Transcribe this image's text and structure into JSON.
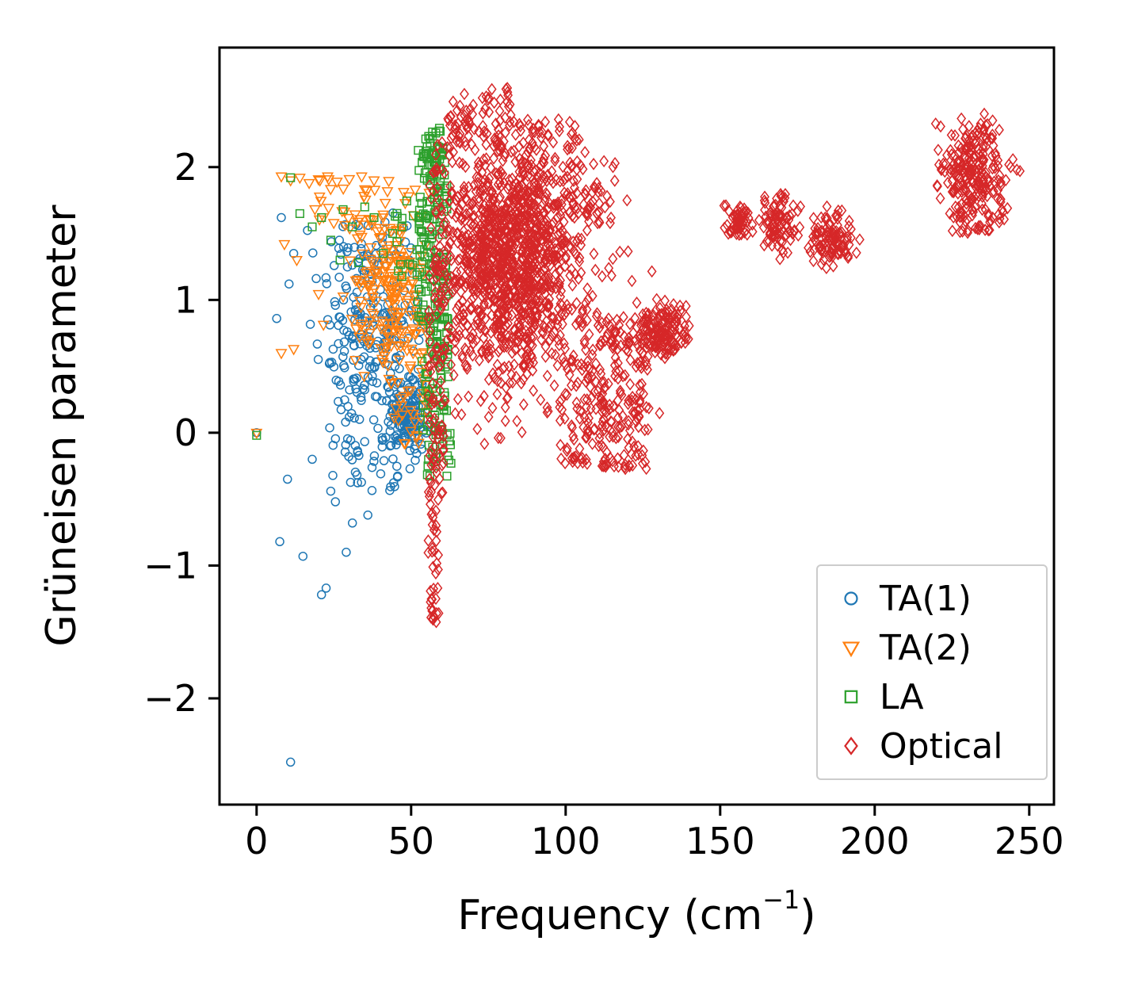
{
  "chart_data": {
    "type": "scatter",
    "title": "",
    "xlabel": "Frequency (cm⁻¹)",
    "xlabel_parts": {
      "text": "Frequency (cm",
      "sup": "−1",
      "close": ")"
    },
    "ylabel": "Grüneisen parameter",
    "xlim": [
      -12,
      258
    ],
    "ylim": [
      -2.8,
      2.9
    ],
    "xticks": {
      "values": [
        0,
        50,
        100,
        150,
        200,
        250
      ],
      "labels": [
        "0",
        "50",
        "100",
        "150",
        "200",
        "250"
      ]
    },
    "yticks": {
      "values": [
        -2,
        -1,
        0,
        1,
        2
      ],
      "labels": [
        "−2",
        "−1",
        "0",
        "1",
        "2"
      ]
    },
    "grid": false,
    "legend": {
      "location": "lower right",
      "entries": [
        "TA(1)",
        "TA(2)",
        "LA",
        "Optical"
      ]
    },
    "series": [
      {
        "name": "TA(1)",
        "marker": "circle",
        "color": "#1f77b4",
        "seed": 11,
        "points": [
          [
            0,
            0
          ],
          [
            11,
            -2.48
          ],
          [
            21,
            -1.22
          ],
          [
            22.5,
            -1.17
          ],
          [
            7.5,
            -0.82
          ],
          [
            15,
            -0.93
          ],
          [
            29,
            -0.9
          ],
          [
            25.5,
            -0.52
          ],
          [
            24,
            -0.44
          ],
          [
            10,
            -0.35
          ],
          [
            36,
            -0.62
          ],
          [
            8,
            1.62
          ],
          [
            6.5,
            0.86
          ],
          [
            10.5,
            1.12
          ],
          [
            33,
            1.56
          ],
          [
            12,
            1.35
          ],
          [
            18,
            -0.2
          ],
          [
            31,
            -0.68
          ]
        ],
        "clusters": [
          {
            "n": 230,
            "dist": "g",
            "cx": 37,
            "sx": 9,
            "cy": 0.72,
            "sy": 0.42,
            "clip": [
              4,
              56,
              -0.35,
              1.68
            ]
          },
          {
            "n": 130,
            "dist": "g",
            "cx": 49,
            "sx": 3,
            "cy": 0.12,
            "sy": 0.13,
            "clip": [
              41,
              56,
              -0.2,
              0.5
            ]
          },
          {
            "n": 45,
            "dist": "u",
            "x": [
              28,
              52
            ],
            "y": [
              -0.45,
              0.1
            ]
          },
          {
            "n": 25,
            "dist": "u",
            "x": [
              24,
              50
            ],
            "y": [
              1.15,
              1.6
            ]
          }
        ]
      },
      {
        "name": "TA(2)",
        "marker": "triangle-down",
        "color": "#ff7f0e",
        "seed": 22,
        "points": [
          [
            0,
            0
          ],
          [
            8,
            1.93
          ],
          [
            11,
            1.9
          ],
          [
            14,
            1.92
          ],
          [
            17,
            1.88
          ],
          [
            20.5,
            1.9
          ],
          [
            23,
            1.93
          ],
          [
            26,
            1.89
          ],
          [
            30,
            1.91
          ],
          [
            8,
            0.6
          ],
          [
            12,
            0.63
          ],
          [
            9,
            1.42
          ],
          [
            13,
            1.3
          ],
          [
            34,
            1.93
          ],
          [
            38,
            1.9
          ]
        ],
        "clusters": [
          {
            "n": 175,
            "dist": "g",
            "cx": 42,
            "sx": 7,
            "cy": 1.22,
            "sy": 0.36,
            "clip": [
              17,
              56.5,
              0.4,
              1.95
            ]
          },
          {
            "n": 45,
            "dist": "u",
            "x": [
              33,
              56
            ],
            "y": [
              0.35,
              0.85
            ]
          },
          {
            "n": 25,
            "dist": "u",
            "x": [
              44,
              57
            ],
            "y": [
              -0.1,
              0.35
            ]
          },
          {
            "n": 18,
            "dist": "u",
            "x": [
              20,
              40
            ],
            "y": [
              1.55,
              1.95
            ]
          }
        ]
      },
      {
        "name": "LA",
        "marker": "square",
        "color": "#2ca02c",
        "seed": 33,
        "points": [
          [
            0,
            -0.02
          ],
          [
            11,
            1.92
          ],
          [
            14,
            1.65
          ],
          [
            18,
            1.55
          ],
          [
            21,
            1.62
          ],
          [
            24,
            1.45
          ],
          [
            28,
            1.68
          ],
          [
            31,
            1.55
          ],
          [
            35,
            1.7
          ],
          [
            38,
            1.62
          ],
          [
            27,
            1.3
          ],
          [
            33,
            1.28
          ],
          [
            44,
            1.5
          ],
          [
            47,
            1.55
          ],
          [
            41,
            1.35
          ]
        ],
        "clusters": [
          {
            "n": 150,
            "dist": "u",
            "x": [
              52,
              62
            ],
            "y": [
              0.85,
              2.15
            ]
          },
          {
            "n": 80,
            "dist": "u",
            "x": [
              53,
              62
            ],
            "y": [
              0.0,
              0.9
            ]
          },
          {
            "n": 25,
            "dist": "u",
            "x": [
              55,
              63
            ],
            "y": [
              -0.35,
              0.05
            ]
          },
          {
            "n": 25,
            "dist": "u",
            "x": [
              54,
              59.5
            ],
            "y": [
              2.0,
              2.3
            ]
          },
          {
            "n": 15,
            "dist": "u",
            "x": [
              44,
              53
            ],
            "y": [
              1.1,
              1.8
            ]
          }
        ]
      },
      {
        "name": "Optical",
        "marker": "diamond",
        "color": "#d62728",
        "seed": 44,
        "points": [
          [
            246,
            1.98
          ],
          [
            247,
            1.97
          ],
          [
            244,
            2.0
          ],
          [
            240,
            1.9
          ],
          [
            57,
            -1.4
          ],
          [
            56.5,
            -1.32
          ],
          [
            58,
            -1.25
          ]
        ],
        "clusters": [
          {
            "n": 900,
            "dist": "g",
            "cx": 84,
            "sx": 13,
            "cy": 1.2,
            "sy": 0.5,
            "clip": [
              58,
              132,
              -0.1,
              2.4
            ]
          },
          {
            "n": 380,
            "dist": "g",
            "cx": 78,
            "sx": 8,
            "cy": 1.4,
            "sy": 0.35,
            "clip": [
              60,
              110,
              0.3,
              2.3
            ]
          },
          {
            "n": 70,
            "dist": "u",
            "x": [
              62,
              82
            ],
            "y": [
              2.15,
              2.6
            ]
          },
          {
            "n": 40,
            "dist": "u",
            "x": [
              82,
              105
            ],
            "y": [
              2.0,
              2.35
            ]
          },
          {
            "n": 80,
            "dist": "u",
            "x": [
              85,
              116
            ],
            "y": [
              1.55,
              2.05
            ]
          },
          {
            "n": 45,
            "dist": "u",
            "x": [
              55.5,
              61
            ],
            "y": [
              -0.5,
              0.3
            ]
          },
          {
            "n": 35,
            "dist": "u",
            "x": [
              55.5,
              59
            ],
            "y": [
              -1.45,
              -0.5
            ]
          },
          {
            "n": 60,
            "dist": "u",
            "x": [
              55.5,
              61
            ],
            "y": [
              0.3,
              2.2
            ]
          },
          {
            "n": 90,
            "dist": "u",
            "x": [
              98,
              113
            ],
            "y": [
              -0.3,
              0.55
            ]
          },
          {
            "n": 160,
            "dist": "u",
            "x": [
              111,
              127
            ],
            "y": [
              -0.28,
              0.85
            ]
          },
          {
            "n": 140,
            "dist": "g",
            "cx": 131,
            "sx": 4,
            "cy": 0.78,
            "sy": 0.12,
            "clip": [
              122,
              142,
              0.55,
              1.02
            ]
          },
          {
            "n": 55,
            "dist": "g",
            "cx": 156,
            "sx": 2.2,
            "cy": 1.6,
            "sy": 0.07,
            "clip": [
              151,
              162,
              1.45,
              1.75
            ]
          },
          {
            "n": 85,
            "dist": "g",
            "cx": 169,
            "sx": 3,
            "cy": 1.58,
            "sy": 0.12,
            "clip": [
              162,
              177,
              1.3,
              1.82
            ]
          },
          {
            "n": 100,
            "dist": "g",
            "cx": 186,
            "sx": 4,
            "cy": 1.45,
            "sy": 0.11,
            "clip": [
              178,
              197,
              1.22,
              1.72
            ]
          },
          {
            "n": 170,
            "dist": "g",
            "cx": 231,
            "sx": 5,
            "cy": 2.05,
            "sy": 0.17,
            "clip": [
              218,
              247,
              1.6,
              2.42
            ]
          },
          {
            "n": 80,
            "dist": "u",
            "x": [
              224,
              243
            ],
            "y": [
              1.5,
              1.9
            ]
          }
        ]
      }
    ]
  }
}
